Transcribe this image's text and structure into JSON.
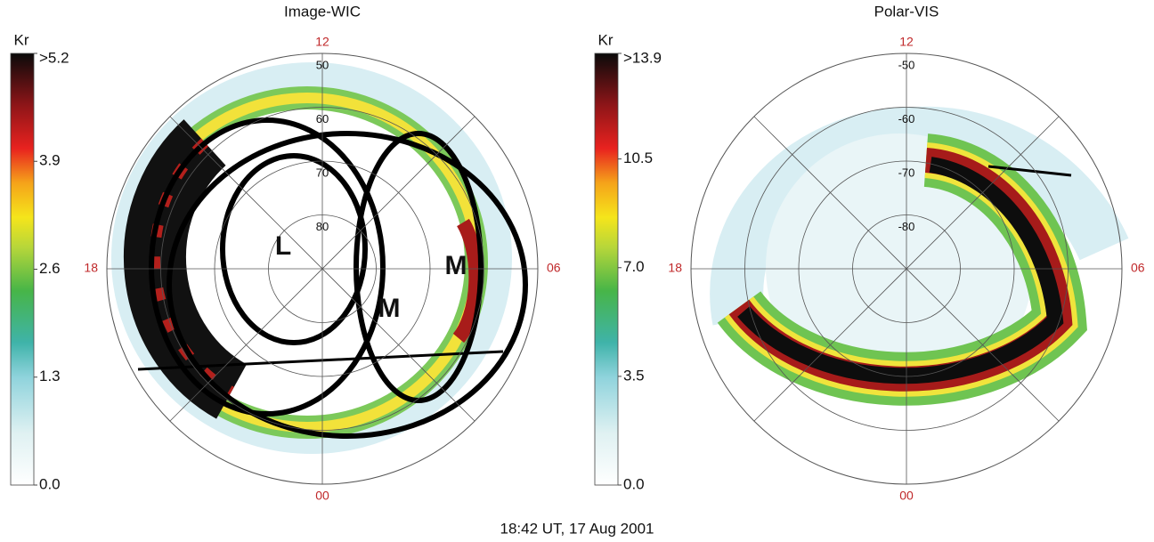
{
  "chart_data": [
    {
      "type": "polar",
      "title": "Image-WIC",
      "colorbar_label": "Kr",
      "clim": [
        0,
        5.2
      ],
      "cticks": [
        {
          "value": 5.2,
          "label": ">5.2"
        },
        3.9,
        2.6,
        1.3,
        {
          "value": 0,
          "label": "0.0"
        }
      ],
      "rlim": [
        90,
        50
      ],
      "rticks": [
        50,
        60,
        70,
        80
      ],
      "theta_labels": [
        "12",
        "06",
        "00",
        "18"
      ],
      "annotations": [
        "L",
        "M",
        "M"
      ]
    },
    {
      "type": "polar",
      "title": "Polar-VIS",
      "colorbar_label": "Kr",
      "clim": [
        0,
        13.9
      ],
      "cticks": [
        {
          "value": 13.9,
          "label": ">13.9"
        },
        10.5,
        {
          "value": 7,
          "label": "7.0"
        },
        3.5,
        {
          "value": 0,
          "label": "0.0"
        }
      ],
      "rlim": [
        -90,
        -50
      ],
      "rticks": [
        -50,
        -60,
        -70,
        -80
      ],
      "theta_labels": [
        "12",
        "06",
        "00",
        "18"
      ]
    }
  ],
  "caption": "18:42 UT, 17 Aug 2001"
}
